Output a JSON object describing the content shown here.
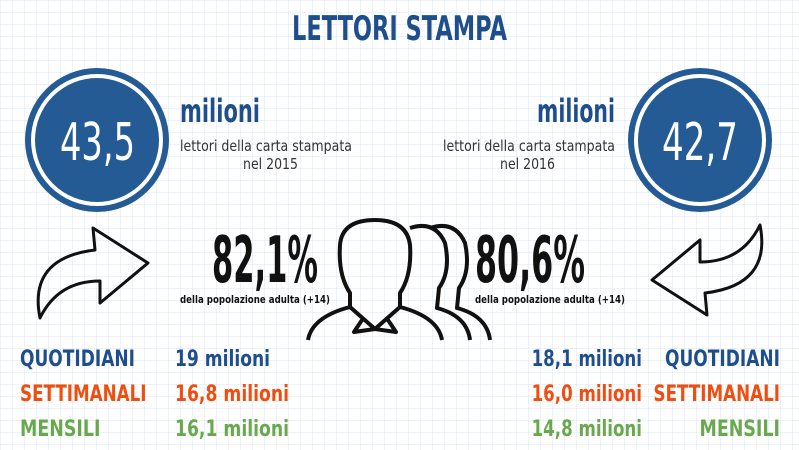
{
  "title": "LETTORI STAMPA",
  "left": {
    "value": "43,5",
    "unit": "milioni",
    "description": [
      "lettori della carta stampata",
      "nel 2015"
    ],
    "percentage": "82,1%",
    "percentage_note": "della popolazione adulta (+14)",
    "categories": [
      {
        "label": "QUOTIDIANI",
        "value": "19 milioni"
      },
      {
        "label": "SETTIMANALI",
        "value": "16,8 milioni"
      },
      {
        "label": "MENSILI",
        "value": "16,1 milioni"
      }
    ]
  },
  "right": {
    "value": "42,7",
    "unit": "milioni",
    "description": [
      "lettori della carta stampata",
      "nel 2016"
    ],
    "percentage": "80,6%",
    "percentage_note": "della popolazione adulta (+14)",
    "categories": [
      {
        "label": "QUOTIDIANI",
        "value": "18,1 milioni"
      },
      {
        "label": "SETTIMANALI",
        "value": "16,0 milioni"
      },
      {
        "label": "MENSILI",
        "value": "14,8 milioni"
      }
    ]
  }
}
